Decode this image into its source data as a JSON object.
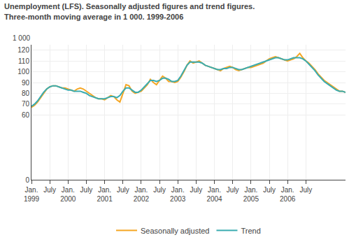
{
  "chart_data": {
    "type": "line",
    "title": "Unemployment (LFS). Seasonally adjusted figures and trend figures.",
    "subtitle": "Three-month moving average in 1 000. 1999-2006",
    "y_label": "1 000",
    "categories": [
      "Jan.\n1999",
      null,
      null,
      null,
      null,
      null,
      "July",
      null,
      null,
      null,
      null,
      null,
      "Jan.\n2000",
      null,
      null,
      null,
      null,
      null,
      "July",
      null,
      null,
      null,
      null,
      null,
      "Jan.\n2001",
      null,
      null,
      null,
      null,
      null,
      "July",
      null,
      null,
      null,
      null,
      null,
      "Jan.\n2002",
      null,
      null,
      null,
      null,
      null,
      "July",
      null,
      null,
      null,
      null,
      null,
      "Jan.\n2003",
      null,
      null,
      null,
      null,
      null,
      "July",
      null,
      null,
      null,
      null,
      null,
      "Jan.\n2004",
      null,
      null,
      null,
      null,
      null,
      "July",
      null,
      null,
      null,
      null,
      null,
      "Jan.\n2005",
      null,
      null,
      null,
      null,
      null,
      "July",
      null,
      null,
      null,
      null,
      null,
      "Jan.\n2006",
      null,
      null,
      null,
      null,
      null,
      "July",
      null,
      null,
      null,
      null,
      null,
      null,
      null,
      null,
      null,
      null,
      null,
      null,
      null
    ],
    "series": [
      {
        "name": "Seasonally adjusted",
        "color": "#f5a623",
        "values": [
          67,
          69,
          72,
          76,
          80,
          84,
          86,
          87,
          87,
          86,
          85,
          85,
          84,
          83,
          82,
          84,
          85,
          84,
          82,
          80,
          78,
          76,
          75,
          75,
          74,
          76,
          78,
          77,
          74,
          72,
          80,
          88,
          87,
          82,
          80,
          81,
          82,
          85,
          88,
          93,
          90,
          88,
          92,
          96,
          94,
          91,
          91,
          90,
          91,
          95,
          100,
          106,
          110,
          108,
          109,
          110,
          108,
          106,
          105,
          104,
          103,
          102,
          101,
          103,
          104,
          105,
          104,
          102,
          101,
          102,
          103,
          104,
          104,
          105,
          106,
          107,
          108,
          110,
          112,
          113,
          114,
          113,
          112,
          111,
          110,
          111,
          112,
          114,
          117,
          113,
          110,
          108,
          105,
          102,
          98,
          95,
          92,
          90,
          88,
          86,
          84,
          82,
          82,
          81
        ]
      },
      {
        "name": "Trend",
        "color": "#3aacb0",
        "values": [
          68,
          70,
          73,
          77,
          81,
          84,
          86,
          87,
          87,
          86,
          85,
          84,
          83,
          83,
          82,
          82,
          82,
          81,
          80,
          78,
          77,
          76,
          75,
          75,
          75,
          76,
          77,
          77,
          76,
          78,
          82,
          85,
          85,
          83,
          81,
          81,
          83,
          86,
          89,
          92,
          92,
          91,
          92,
          94,
          94,
          93,
          91,
          91,
          92,
          96,
          101,
          106,
          109,
          109,
          109,
          109,
          108,
          106,
          105,
          104,
          103,
          102,
          102,
          103,
          103,
          104,
          104,
          103,
          102,
          102,
          103,
          104,
          105,
          106,
          107,
          108,
          109,
          110,
          111,
          112,
          113,
          113,
          112,
          111,
          111,
          112,
          113,
          113,
          113,
          112,
          110,
          107,
          104,
          101,
          97,
          94,
          91,
          89,
          87,
          85,
          83,
          82,
          82,
          81
        ]
      }
    ],
    "ylim": [
      0,
      125
    ],
    "yticks": [
      0,
      60,
      70,
      80,
      90,
      100,
      110,
      120
    ],
    "grid": true,
    "legend": "bottom"
  }
}
